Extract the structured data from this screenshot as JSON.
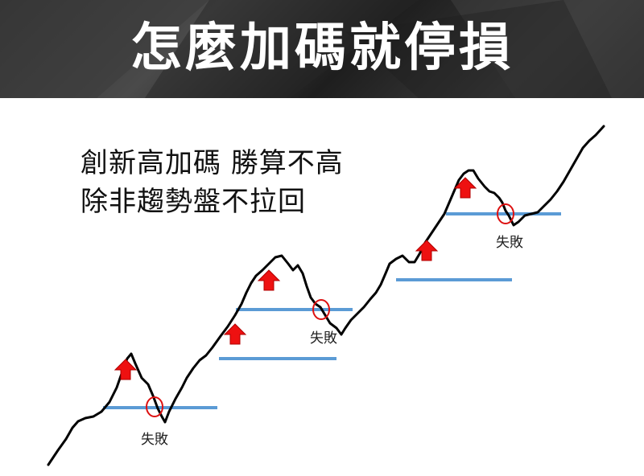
{
  "title": "怎麼加碼就停損",
  "caption": {
    "line1": "創新高加碼 勝算不高",
    "line2": "除非趨勢盤不拉回"
  },
  "fail_label": "失敗",
  "colors": {
    "banner": "#333333",
    "title_text": "#ffffff",
    "price_line": "#000000",
    "level_line": "#5b9bd5",
    "arrow_fill": "#ee1111",
    "circle_stroke": "#dd1111"
  }
}
